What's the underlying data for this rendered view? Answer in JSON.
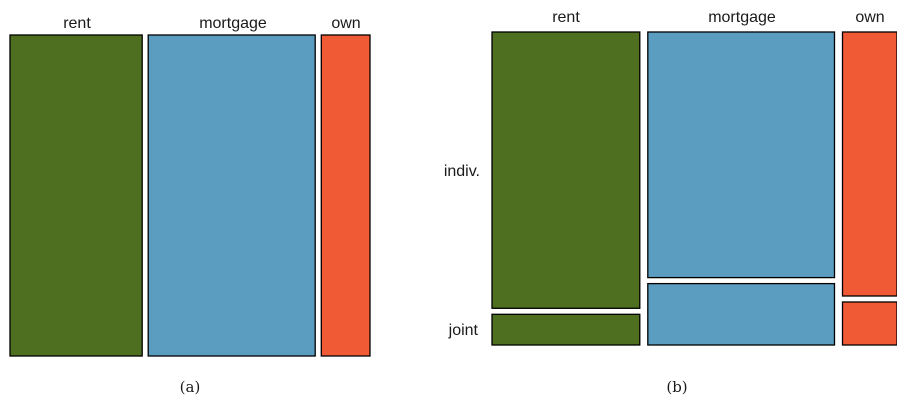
{
  "chart_data": [
    {
      "type": "mosaic",
      "caption": "(a)",
      "categories": [
        "rent",
        "mortgage",
        "own"
      ],
      "proportions": [
        0.38,
        0.48,
        0.14
      ],
      "colors": [
        "#4d6f1f",
        "#5b9dc0",
        "#f05a35"
      ]
    },
    {
      "type": "mosaic",
      "caption": "(b)",
      "categories": [
        "rent",
        "mortgage",
        "own"
      ],
      "row_labels": [
        "indiv.",
        "joint"
      ],
      "proportions": [
        0.38,
        0.48,
        0.14
      ],
      "conditional": [
        {
          "category": "rent",
          "indiv.": 0.9,
          "joint": 0.1
        },
        {
          "category": "mortgage",
          "indiv.": 0.8,
          "joint": 0.2
        },
        {
          "category": "own",
          "indiv.": 0.86,
          "joint": 0.14
        }
      ],
      "colors": [
        "#4d6f1f",
        "#5b9dc0",
        "#f05a35"
      ]
    }
  ]
}
